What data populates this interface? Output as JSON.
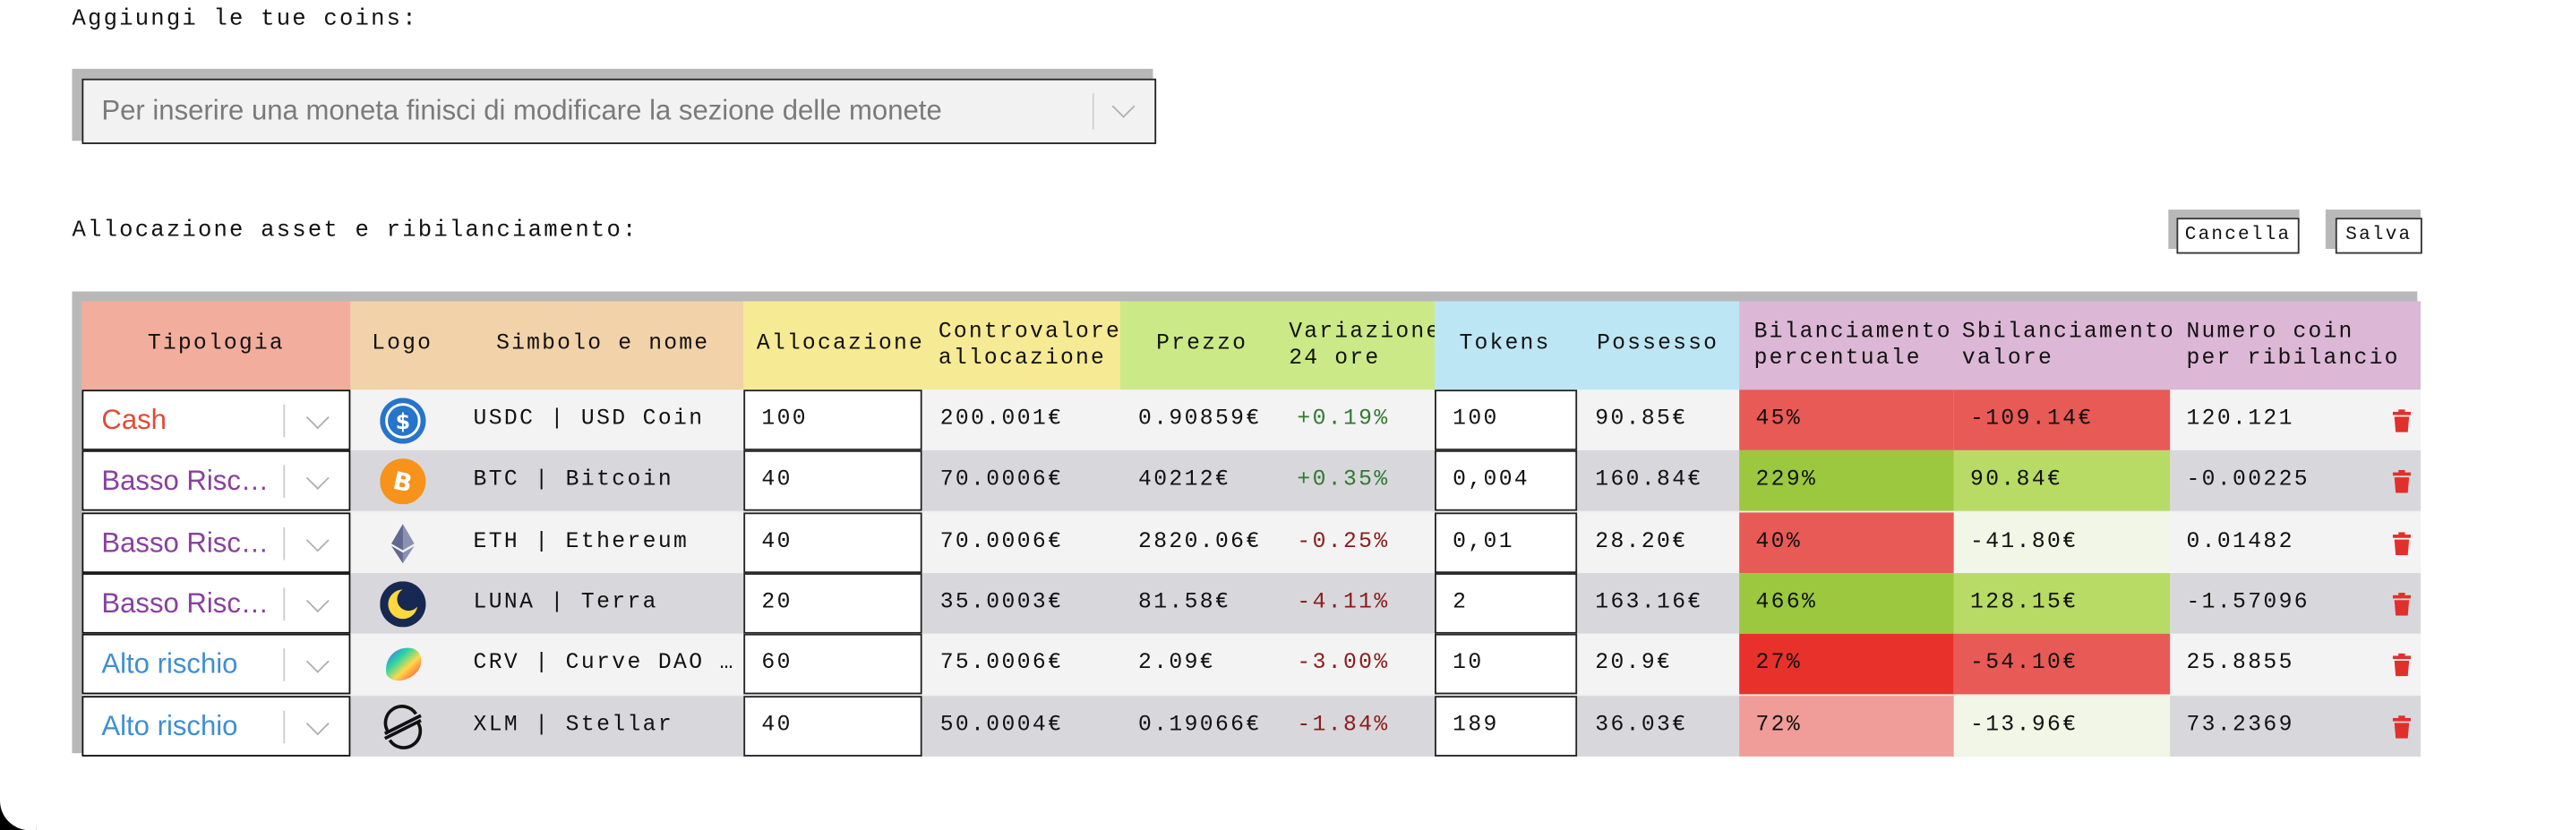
{
  "add_coins": {
    "label": "Aggiungi le tue coins:",
    "select_placeholder": "Per inserire una moneta finisci di modificare la sezione delle monete"
  },
  "allocation": {
    "label": "Allocazione asset e ribilanciamento:",
    "cancel_label": "Cancella",
    "save_label": "Salva"
  },
  "colors": {
    "tipologia_header": "#f2ad9c",
    "logo_header": "#f2d2a9",
    "alloc_header": "#f6ea94",
    "price_header": "#cbea87",
    "tokens_header": "#bde6f4",
    "rebalance_header": "#dcb7d6",
    "cash": "#e04b37",
    "basso_rischio": "#8a3f9f",
    "alto_rischio": "#3f8ed4",
    "positive": "#2f7a2f",
    "negative": "#8a1c1c",
    "trash": "#e0302b"
  },
  "table": {
    "headers": {
      "tipologia": "Tipologia",
      "logo": "Logo",
      "symbol": "Simbolo e nome",
      "allocation": "Allocazione",
      "countervalue_1": "Controvalore",
      "countervalue_2": "allocazione",
      "price": "Prezzo",
      "variation_1": "Variazione",
      "variation_2": "24 ore",
      "tokens": "Tokens",
      "holding": "Possesso",
      "bal_pct_1": "Bilanciamento",
      "bal_pct_2": "percentuale",
      "unbal_1": "Sbilanciamento",
      "unbal_2": "valore",
      "coins_1": "Numero coin",
      "coins_2": "per ribilancio"
    },
    "rows": [
      {
        "type": "Cash",
        "type_color": "#e04b37",
        "logo": "usdc-logo-icon",
        "symbol": "USDC | USD Coin",
        "allocation": "100",
        "countervalue": "200.001€",
        "price": "0.90859€",
        "variation": "+0.19%",
        "tokens": "100",
        "holding": "90.85€",
        "bal_pct": "45%",
        "bal_pct_bg": "#e85a55",
        "unbal": "-109.14€",
        "unbal_bg": "#e85a55",
        "coins": "120.121"
      },
      {
        "type": "Basso Risc…",
        "type_color": "#8a3f9f",
        "logo": "bitcoin-logo-icon",
        "symbol": "BTC | Bitcoin",
        "allocation": "40",
        "countervalue": "70.0006€",
        "price": "40212€",
        "variation": "+0.35%",
        "tokens": "0,004",
        "holding": "160.84€",
        "bal_pct": "229%",
        "bal_pct_bg": "#9bc83f",
        "unbal": "90.84€",
        "unbal_bg": "#b8db66",
        "coins": "-0.00225"
      },
      {
        "type": "Basso Risc…",
        "type_color": "#8a3f9f",
        "logo": "ethereum-logo-icon",
        "symbol": "ETH | Ethereum",
        "allocation": "40",
        "countervalue": "70.0006€",
        "price": "2820.06€",
        "variation": "-0.25%",
        "tokens": "0,01",
        "holding": "28.20€",
        "bal_pct": "40%",
        "bal_pct_bg": "#e85a55",
        "unbal": "-41.80€",
        "unbal_bg": "#f1f6e6",
        "coins": "0.01482"
      },
      {
        "type": "Basso Risc…",
        "type_color": "#8a3f9f",
        "logo": "terra-luna-logo-icon",
        "symbol": "LUNA | Terra",
        "allocation": "20",
        "countervalue": "35.0003€",
        "price": "81.58€",
        "variation": "-4.11%",
        "tokens": "2",
        "holding": "163.16€",
        "bal_pct": "466%",
        "bal_pct_bg": "#9bc83f",
        "unbal": "128.15€",
        "unbal_bg": "#b8db66",
        "coins": "-1.57096"
      },
      {
        "type": "Alto rischio",
        "type_color": "#3f8ed4",
        "logo": "curve-logo-icon",
        "symbol": "CRV | Curve DAO …",
        "allocation": "60",
        "countervalue": "75.0006€",
        "price": "2.09€",
        "variation": "-3.00%",
        "tokens": "10",
        "holding": "20.9€",
        "bal_pct": "27%",
        "bal_pct_bg": "#e8312b",
        "unbal": "-54.10€",
        "unbal_bg": "#e85a55",
        "coins": "25.8855"
      },
      {
        "type": "Alto rischio",
        "type_color": "#3f8ed4",
        "logo": "stellar-logo-icon",
        "symbol": "XLM | Stellar",
        "allocation": "40",
        "countervalue": "50.0004€",
        "price": "0.19066€",
        "variation": "-1.84%",
        "tokens": "189",
        "holding": "36.03€",
        "bal_pct": "72%",
        "bal_pct_bg": "#f09c98",
        "unbal": "-13.96€",
        "unbal_bg": "#f1f6e6",
        "coins": "73.2369"
      }
    ]
  }
}
